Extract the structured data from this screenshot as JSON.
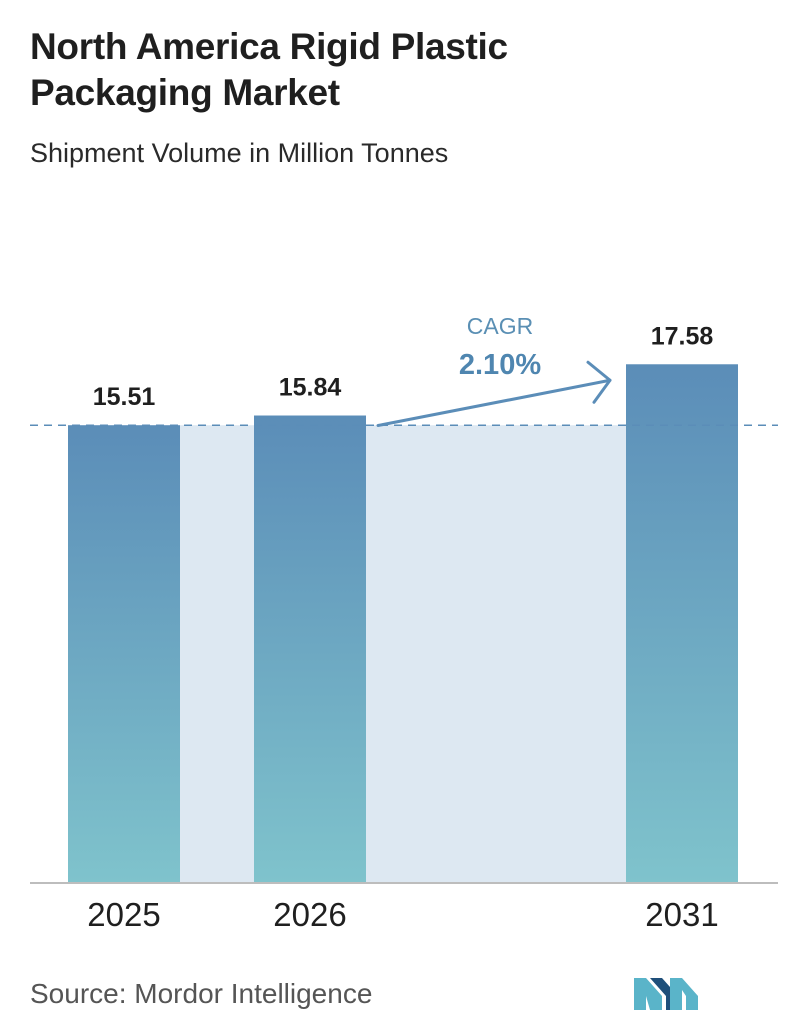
{
  "title": "North America Rigid Plastic Packaging Market",
  "subtitle": "Shipment Volume in Million Tonnes",
  "source": "Source:  Mordor Intelligence",
  "logo_icon": "mordor-intelligence-logo-icon",
  "colors": {
    "bar_top": "#5b8db8",
    "bar_bottom": "#7fc3cc",
    "band": "#dde8f2",
    "reference_line": "#5b8db8",
    "cagr_arrow": "#5b8db8",
    "logo_dark": "#1f4f7a",
    "logo_light": "#5ab4c9"
  },
  "chart_data": {
    "type": "bar",
    "title": "North America Rigid Plastic Packaging Market",
    "subtitle": "Shipment Volume in Million Tonnes",
    "categories": [
      "2025",
      "2026",
      "2031"
    ],
    "values": [
      15.51,
      15.84,
      17.58
    ],
    "value_labels": [
      "15.51",
      "15.84",
      "17.58"
    ],
    "ylabel": "",
    "xlabel": "",
    "grid": false,
    "legend": "none",
    "annotation": {
      "label": "CAGR",
      "value": "2.10%",
      "from": "2026",
      "to": "2031"
    },
    "reference_line": {
      "value": 15.51,
      "style": "dashed"
    }
  }
}
